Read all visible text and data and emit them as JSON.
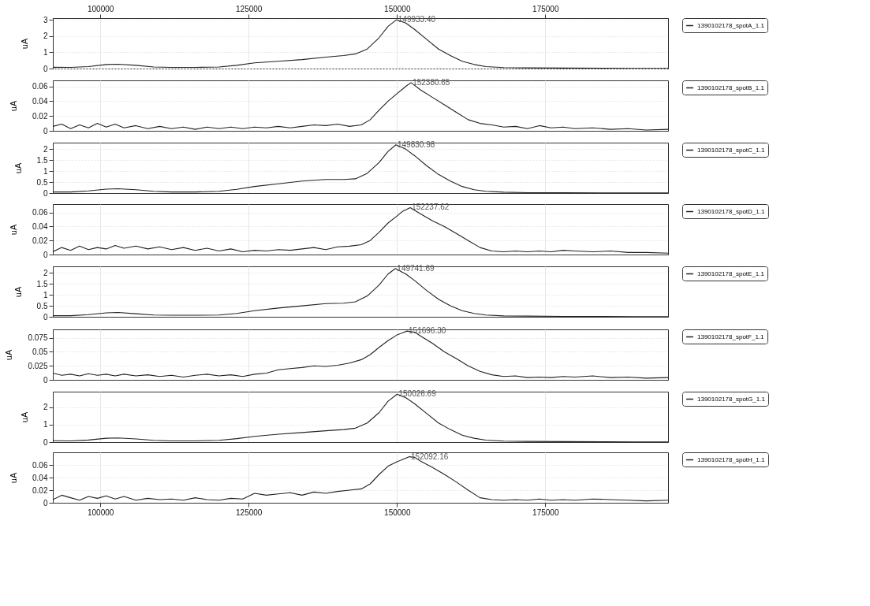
{
  "chart_data": [
    {
      "type": "line",
      "ylabel": "uA",
      "xlim": [
        92000,
        195700
      ],
      "xticks": [
        100000,
        125000,
        150000,
        175000
      ],
      "ylim": [
        0,
        3.1
      ],
      "yticks": [
        0,
        1,
        2,
        3
      ],
      "grid": true,
      "legend": "right",
      "tick_labels": true,
      "series": [
        {
          "name": "1390102178_spotA_1.1",
          "color": "#222222",
          "x": [
            92000,
            95000,
            98000,
            101000,
            103000,
            106000,
            109000,
            112000,
            116000,
            120000,
            123000,
            126000,
            130000,
            134000,
            138000,
            141000,
            143000,
            145000,
            147000,
            148500,
            149933.4,
            151500,
            153000,
            155000,
            157000,
            159000,
            161000,
            163000,
            165000,
            168000,
            172000,
            178000,
            185000,
            190000,
            195700
          ],
          "values": [
            0.08,
            0.07,
            0.12,
            0.25,
            0.27,
            0.2,
            0.1,
            0.07,
            0.07,
            0.1,
            0.2,
            0.35,
            0.45,
            0.55,
            0.7,
            0.8,
            0.9,
            1.2,
            1.9,
            2.6,
            3.0,
            2.8,
            2.4,
            1.8,
            1.2,
            0.8,
            0.45,
            0.25,
            0.12,
            0.06,
            0.04,
            0.03,
            0.02,
            0.01,
            0.01
          ]
        }
      ],
      "annotations": [
        {
          "text": "149933.40",
          "x": 149933.4,
          "y": 3.0
        }
      ]
    },
    {
      "type": "line",
      "ylabel": "uA",
      "xlim": [
        92000,
        195700
      ],
      "xticks": [
        100000,
        125000,
        150000,
        175000
      ],
      "ylim": [
        0,
        0.068
      ],
      "yticks": [
        0,
        0.02,
        0.04,
        0.06
      ],
      "grid": true,
      "legend": "right",
      "tick_labels": "y",
      "series": [
        {
          "name": "1390102178_spotB_1.1",
          "color": "#222222",
          "x": [
            92000,
            93500,
            95000,
            96500,
            98000,
            99500,
            101000,
            102500,
            104000,
            106000,
            108000,
            110000,
            112000,
            114000,
            116000,
            118000,
            120000,
            122000,
            124000,
            126000,
            128000,
            130000,
            132000,
            134000,
            136000,
            138000,
            140000,
            142000,
            144000,
            145500,
            147000,
            148500,
            150000,
            151500,
            152380.65,
            154000,
            156000,
            158000,
            160000,
            162000,
            164000,
            166000,
            168000,
            170000,
            172000,
            174000,
            176000,
            178000,
            180000,
            183000,
            186000,
            189000,
            192000,
            195700
          ],
          "values": [
            0.006,
            0.009,
            0.003,
            0.008,
            0.004,
            0.01,
            0.005,
            0.009,
            0.004,
            0.007,
            0.003,
            0.006,
            0.003,
            0.005,
            0.002,
            0.005,
            0.003,
            0.005,
            0.003,
            0.005,
            0.004,
            0.006,
            0.004,
            0.006,
            0.008,
            0.007,
            0.009,
            0.006,
            0.008,
            0.015,
            0.028,
            0.04,
            0.05,
            0.06,
            0.065,
            0.055,
            0.045,
            0.035,
            0.025,
            0.015,
            0.01,
            0.008,
            0.005,
            0.006,
            0.003,
            0.007,
            0.004,
            0.005,
            0.003,
            0.004,
            0.002,
            0.003,
            0.001,
            0.002
          ]
        }
      ],
      "annotations": [
        {
          "text": "152380.65",
          "x": 152380.65,
          "y": 0.065
        }
      ]
    },
    {
      "type": "line",
      "ylabel": "uA",
      "xlim": [
        92000,
        195700
      ],
      "xticks": [
        100000,
        125000,
        150000,
        175000
      ],
      "ylim": [
        0,
        2.3
      ],
      "yticks": [
        0,
        0.5,
        1,
        1.5,
        2
      ],
      "grid": true,
      "legend": "right",
      "tick_labels": "y",
      "series": [
        {
          "name": "1390102178_spotC_1.1",
          "color": "#222222",
          "x": [
            92000,
            95000,
            98000,
            101000,
            103000,
            106000,
            109000,
            112000,
            116000,
            120000,
            123000,
            126000,
            130000,
            134000,
            138000,
            141000,
            143000,
            145000,
            147000,
            148500,
            149830.98,
            151500,
            153000,
            155000,
            157000,
            159000,
            161000,
            163000,
            165000,
            168000,
            172000,
            178000,
            185000,
            190000,
            195700
          ],
          "values": [
            0.05,
            0.05,
            0.1,
            0.18,
            0.2,
            0.15,
            0.08,
            0.05,
            0.05,
            0.08,
            0.17,
            0.3,
            0.42,
            0.55,
            0.62,
            0.62,
            0.65,
            0.9,
            1.4,
            1.9,
            2.2,
            2.0,
            1.7,
            1.25,
            0.85,
            0.55,
            0.3,
            0.15,
            0.08,
            0.04,
            0.02,
            0.02,
            0.01,
            0.01,
            0.01
          ]
        }
      ],
      "annotations": [
        {
          "text": "149830.98",
          "x": 149830.98,
          "y": 2.2
        }
      ]
    },
    {
      "type": "line",
      "ylabel": "uA",
      "xlim": [
        92000,
        195700
      ],
      "xticks": [
        100000,
        125000,
        150000,
        175000
      ],
      "ylim": [
        0,
        0.072
      ],
      "yticks": [
        0,
        0.02,
        0.04,
        0.06
      ],
      "grid": true,
      "legend": "right",
      "tick_labels": "y",
      "series": [
        {
          "name": "1390102178_spotD_1.1",
          "color": "#222222",
          "x": [
            92000,
            93500,
            95000,
            96500,
            98000,
            99500,
            101000,
            102500,
            104000,
            106000,
            108000,
            110000,
            112000,
            114000,
            116000,
            118000,
            120000,
            122000,
            124000,
            126000,
            128000,
            130000,
            132000,
            134000,
            136000,
            138000,
            140000,
            142000,
            144000,
            145500,
            147000,
            148500,
            150000,
            151000,
            152237.62,
            154000,
            156000,
            158000,
            160000,
            162000,
            164000,
            166000,
            168000,
            170000,
            172000,
            174000,
            176000,
            178000,
            180000,
            183000,
            186000,
            189000,
            192000,
            195700
          ],
          "values": [
            0.004,
            0.01,
            0.006,
            0.012,
            0.007,
            0.01,
            0.008,
            0.013,
            0.009,
            0.012,
            0.008,
            0.011,
            0.007,
            0.01,
            0.006,
            0.009,
            0.005,
            0.008,
            0.004,
            0.006,
            0.005,
            0.007,
            0.006,
            0.008,
            0.01,
            0.007,
            0.011,
            0.012,
            0.014,
            0.02,
            0.032,
            0.045,
            0.055,
            0.062,
            0.067,
            0.058,
            0.048,
            0.04,
            0.03,
            0.02,
            0.01,
            0.005,
            0.004,
            0.005,
            0.004,
            0.005,
            0.004,
            0.006,
            0.005,
            0.004,
            0.005,
            0.003,
            0.003,
            0.002
          ]
        }
      ],
      "annotations": [
        {
          "text": "152237.62",
          "x": 152237.62,
          "y": 0.067
        }
      ]
    },
    {
      "type": "line",
      "ylabel": "uA",
      "xlim": [
        92000,
        195700
      ],
      "xticks": [
        100000,
        125000,
        150000,
        175000
      ],
      "ylim": [
        0,
        2.3
      ],
      "yticks": [
        0,
        0.5,
        1,
        1.5,
        2
      ],
      "grid": true,
      "legend": "right",
      "tick_labels": "y",
      "series": [
        {
          "name": "1390102178_spotE_1.1",
          "color": "#222222",
          "x": [
            92000,
            95000,
            98000,
            101000,
            103000,
            106000,
            109000,
            112000,
            116000,
            120000,
            123000,
            126000,
            130000,
            134000,
            138000,
            141000,
            143000,
            145000,
            147000,
            148500,
            149741.69,
            151500,
            153000,
            155000,
            157000,
            159000,
            161000,
            163000,
            165000,
            168000,
            172000,
            178000,
            185000,
            190000,
            195700
          ],
          "values": [
            0.05,
            0.05,
            0.1,
            0.18,
            0.2,
            0.14,
            0.08,
            0.07,
            0.07,
            0.08,
            0.15,
            0.28,
            0.4,
            0.5,
            0.6,
            0.62,
            0.68,
            0.95,
            1.45,
            1.95,
            2.2,
            1.95,
            1.65,
            1.2,
            0.8,
            0.5,
            0.28,
            0.15,
            0.08,
            0.04,
            0.03,
            0.02,
            0.02,
            0.01,
            0.01
          ]
        }
      ],
      "annotations": [
        {
          "text": "149741.69",
          "x": 149741.69,
          "y": 2.2
        }
      ]
    },
    {
      "type": "line",
      "ylabel": "uA",
      "xlim": [
        92000,
        195700
      ],
      "xticks": [
        100000,
        125000,
        150000,
        175000
      ],
      "ylim": [
        0,
        0.09
      ],
      "yticks": [
        0,
        0.025,
        0.05,
        0.075
      ],
      "grid": true,
      "legend": "right",
      "tick_labels": "y",
      "series": [
        {
          "name": "1390102178_spotF_1.1",
          "color": "#222222",
          "x": [
            92000,
            93500,
            95000,
            96500,
            98000,
            99500,
            101000,
            102500,
            104000,
            106000,
            108000,
            110000,
            112000,
            114000,
            116000,
            118000,
            120000,
            122000,
            124000,
            126000,
            128000,
            130000,
            132000,
            134000,
            136000,
            138000,
            140000,
            142000,
            144000,
            145500,
            147000,
            148500,
            150000,
            151696.3,
            153000,
            154000,
            156000,
            158000,
            160000,
            162000,
            164000,
            166000,
            168000,
            170000,
            172000,
            174000,
            176000,
            178000,
            180000,
            183000,
            186000,
            189000,
            192000,
            195700
          ],
          "values": [
            0.012,
            0.008,
            0.01,
            0.007,
            0.011,
            0.008,
            0.01,
            0.007,
            0.01,
            0.007,
            0.009,
            0.006,
            0.008,
            0.005,
            0.008,
            0.01,
            0.007,
            0.009,
            0.006,
            0.01,
            0.012,
            0.018,
            0.02,
            0.022,
            0.025,
            0.024,
            0.026,
            0.03,
            0.036,
            0.045,
            0.058,
            0.07,
            0.08,
            0.087,
            0.085,
            0.078,
            0.065,
            0.05,
            0.038,
            0.025,
            0.015,
            0.009,
            0.006,
            0.007,
            0.004,
            0.005,
            0.004,
            0.006,
            0.005,
            0.007,
            0.004,
            0.005,
            0.003,
            0.004
          ]
        }
      ],
      "annotations": [
        {
          "text": "151696.30",
          "x": 151696.3,
          "y": 0.087
        }
      ]
    },
    {
      "type": "line",
      "ylabel": "uA",
      "xlim": [
        92000,
        195700
      ],
      "xticks": [
        100000,
        125000,
        150000,
        175000
      ],
      "ylim": [
        0,
        2.9
      ],
      "yticks": [
        0,
        1,
        2
      ],
      "grid": true,
      "legend": "right",
      "tick_labels": "y",
      "series": [
        {
          "name": "1390102178_spotG_1.1",
          "color": "#222222",
          "x": [
            92000,
            95000,
            98000,
            101000,
            103000,
            106000,
            109000,
            112000,
            116000,
            120000,
            123000,
            126000,
            130000,
            134000,
            138000,
            141000,
            143000,
            145000,
            147000,
            148500,
            150026.69,
            151500,
            153000,
            155000,
            157000,
            159000,
            161000,
            163000,
            165000,
            168000,
            172000,
            178000,
            185000,
            190000,
            195700
          ],
          "values": [
            0.08,
            0.07,
            0.12,
            0.22,
            0.24,
            0.18,
            0.1,
            0.07,
            0.07,
            0.1,
            0.2,
            0.33,
            0.45,
            0.55,
            0.65,
            0.72,
            0.8,
            1.1,
            1.7,
            2.35,
            2.75,
            2.55,
            2.2,
            1.65,
            1.1,
            0.72,
            0.4,
            0.22,
            0.11,
            0.06,
            0.04,
            0.03,
            0.02,
            0.01,
            0.01
          ]
        }
      ],
      "annotations": [
        {
          "text": "150026.69",
          "x": 150026.69,
          "y": 2.75
        }
      ]
    },
    {
      "type": "line",
      "ylabel": "uA",
      "xlim": [
        92000,
        195700
      ],
      "xticks": [
        100000,
        125000,
        150000,
        175000
      ],
      "ylim": [
        0,
        0.08
      ],
      "yticks": [
        0,
        0.02,
        0.04,
        0.06
      ],
      "grid": true,
      "legend": "right",
      "tick_labels": true,
      "series": [
        {
          "name": "1390102178_spotH_1.1",
          "color": "#222222",
          "x": [
            92000,
            93500,
            95000,
            96500,
            98000,
            99500,
            101000,
            102500,
            104000,
            106000,
            108000,
            110000,
            112000,
            114000,
            116000,
            118000,
            120000,
            122000,
            124000,
            126000,
            128000,
            130000,
            132000,
            134000,
            136000,
            138000,
            140000,
            142000,
            144000,
            145500,
            147000,
            148500,
            150000,
            152092.16,
            153000,
            154000,
            156000,
            158000,
            160000,
            162000,
            164000,
            166000,
            168000,
            170000,
            172000,
            174000,
            176000,
            178000,
            180000,
            183000,
            186000,
            189000,
            192000,
            195700
          ],
          "values": [
            0.005,
            0.012,
            0.008,
            0.004,
            0.01,
            0.007,
            0.011,
            0.006,
            0.01,
            0.004,
            0.007,
            0.005,
            0.006,
            0.004,
            0.008,
            0.005,
            0.004,
            0.007,
            0.006,
            0.015,
            0.012,
            0.014,
            0.016,
            0.012,
            0.017,
            0.015,
            0.018,
            0.02,
            0.022,
            0.03,
            0.045,
            0.058,
            0.065,
            0.073,
            0.072,
            0.066,
            0.056,
            0.045,
            0.033,
            0.02,
            0.008,
            0.005,
            0.004,
            0.005,
            0.004,
            0.006,
            0.004,
            0.005,
            0.004,
            0.006,
            0.005,
            0.004,
            0.003,
            0.004
          ]
        }
      ],
      "annotations": [
        {
          "text": "152092.16",
          "x": 152092.16,
          "y": 0.073
        }
      ]
    }
  ]
}
